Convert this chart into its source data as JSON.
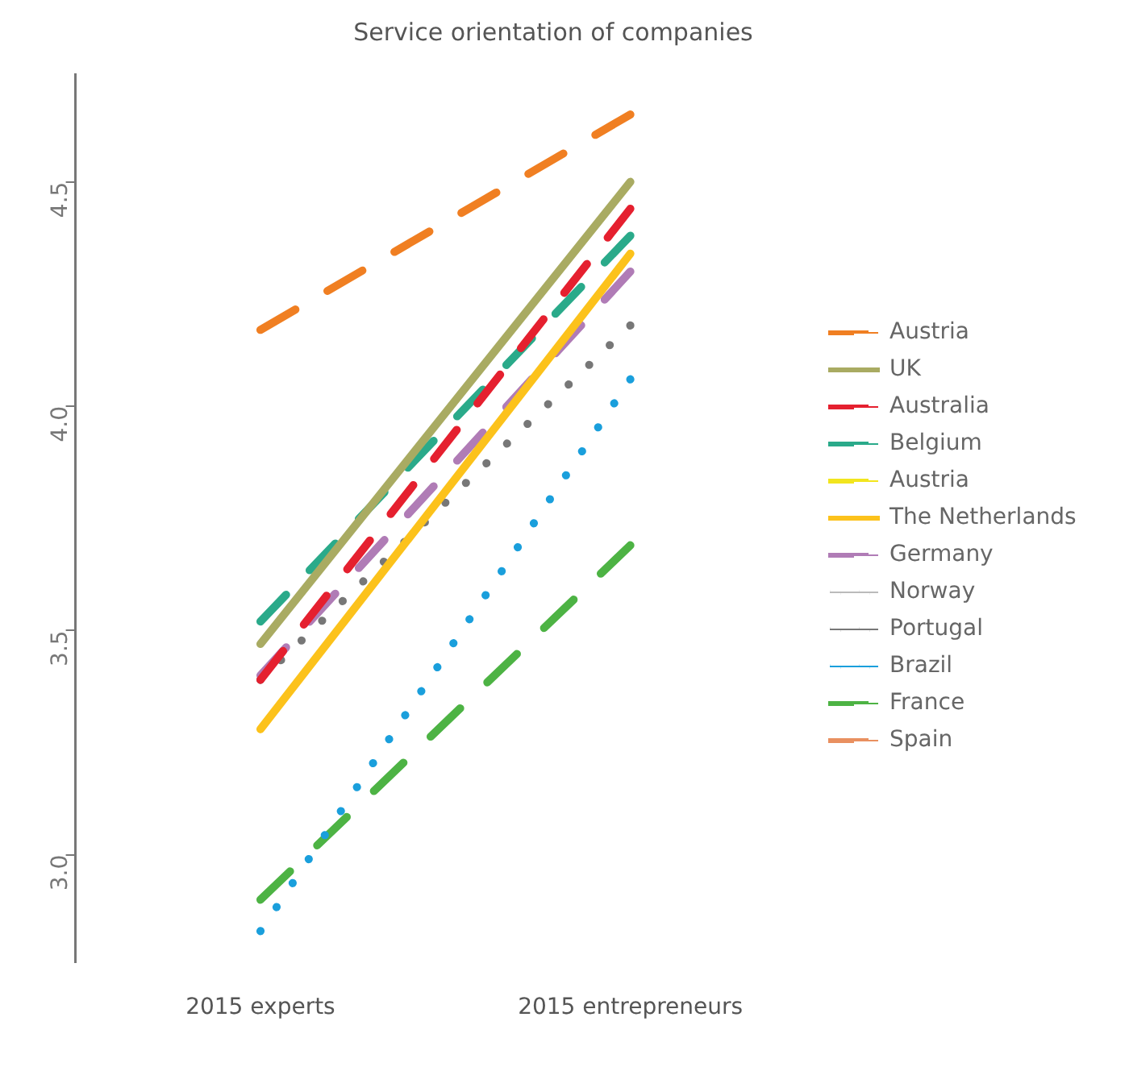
{
  "chart_data": {
    "type": "line",
    "title": "Service orientation of companies",
    "categories": [
      "2015 experts",
      "2015 entrepreneurs"
    ],
    "ylim": [
      2.76,
      4.74
    ],
    "yticks": [
      {
        "value": 3,
        "label": "3.0"
      },
      {
        "value": 3.5,
        "label": "3.5"
      },
      {
        "value": 4,
        "label": "4.0"
      },
      {
        "value": 4.5,
        "label": "4.5"
      }
    ],
    "grid": false,
    "legend": "right",
    "marker": "none",
    "series": [
      {
        "name": "Austria",
        "color": "#f07f22",
        "line_style": "dashed",
        "values": [
          4.17,
          4.65
        ]
      },
      {
        "name": "UK",
        "color": "#a9ab62",
        "line_style": "solid",
        "values": [
          3.47,
          4.5
        ]
      },
      {
        "name": "Australia",
        "color": "#e5202f",
        "line_style": "dashed",
        "values": [
          3.39,
          4.44
        ]
      },
      {
        "name": "Belgium",
        "color": "#2aaa8a",
        "line_style": "dashed",
        "values": [
          3.52,
          4.38
        ]
      },
      {
        "name": "Austria",
        "color": "#f2e51e",
        "line_style": "dashed",
        "values": [
          null,
          null
        ]
      },
      {
        "name": "The Netherlands",
        "color": "#fcc21b",
        "line_style": "solid",
        "values": [
          3.28,
          4.34
        ]
      },
      {
        "name": "Germany",
        "color": "#b07cb6",
        "line_style": "dashed",
        "values": [
          3.4,
          4.3
        ]
      },
      {
        "name": "Norway",
        "color": "#bbbbbb",
        "line_style": "dotted",
        "values": [
          null,
          null
        ]
      },
      {
        "name": "Portugal",
        "color": "#777777",
        "line_style": "dotted",
        "values": [
          3.39,
          4.18
        ]
      },
      {
        "name": "Brazil",
        "color": "#1a9fdc",
        "line_style": "dotted",
        "values": [
          2.83,
          4.06
        ]
      },
      {
        "name": "France",
        "color": "#4db344",
        "line_style": "dashed",
        "values": [
          2.9,
          3.69
        ]
      },
      {
        "name": "Spain",
        "color": "#e99060",
        "line_style": "dashed",
        "values": [
          null,
          null
        ]
      }
    ]
  }
}
